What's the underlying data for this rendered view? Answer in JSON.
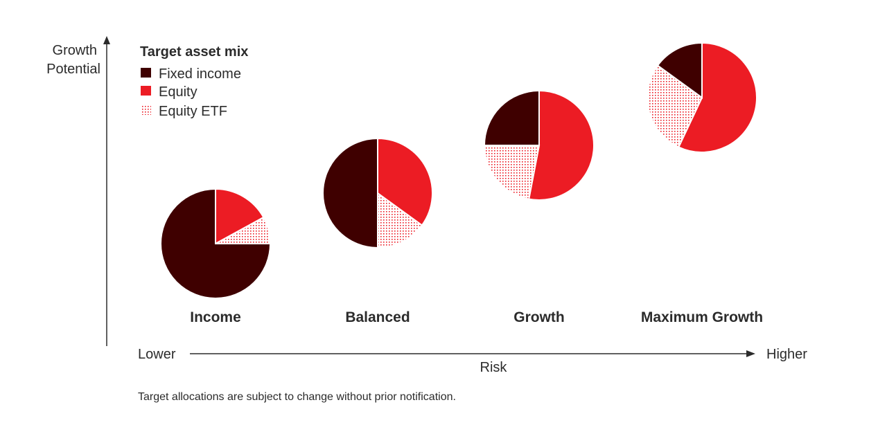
{
  "colors": {
    "fixed_income": "#3f0000",
    "equity": "#ec1c24",
    "equity_etf": "#ec1c24",
    "text": "#2b2b2b"
  },
  "y_axis": {
    "label_line1": "Growth",
    "label_line2": "Potential"
  },
  "x_axis": {
    "low_label": "Lower",
    "high_label": "Higher",
    "label": "Risk"
  },
  "legend": {
    "title": "Target asset mix",
    "items": [
      {
        "label": "Fixed income",
        "pattern": "solid-dark"
      },
      {
        "label": "Equity",
        "pattern": "solid-red"
      },
      {
        "label": "Equity ETF",
        "pattern": "dotted-red"
      }
    ]
  },
  "footnote": "Target allocations are subject to change without prior notification.",
  "chart_data": {
    "type": "pie",
    "series_order": [
      "Equity",
      "Equity ETF",
      "Fixed income"
    ],
    "portfolios": [
      {
        "name": "Income",
        "fixed_income": 75,
        "equity": 17,
        "equity_etf": 8
      },
      {
        "name": "Balanced",
        "fixed_income": 50,
        "equity": 35,
        "equity_etf": 15
      },
      {
        "name": "Growth",
        "fixed_income": 25,
        "equity": 53,
        "equity_etf": 22
      },
      {
        "name": "Maximum Growth",
        "fixed_income": 15,
        "equity": 57,
        "equity_etf": 28
      }
    ]
  }
}
